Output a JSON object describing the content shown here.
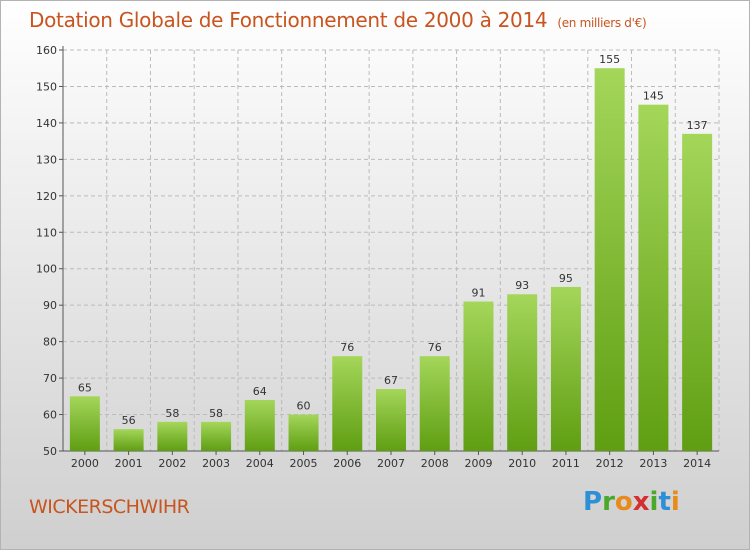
{
  "title": "Dotation Globale de Fonctionnement de 2000 à 2014",
  "subtitle": "(en milliers d'€)",
  "commune": "WICKERSCHWIHR",
  "logo_text": "Proxiti",
  "colors": {
    "bar_top": "#a4d65a",
    "bar_bottom": "#5f9e12",
    "title": "#c8541e",
    "grid": "#bbbbbb"
  },
  "chart_data": {
    "type": "bar",
    "categories": [
      "2000",
      "2001",
      "2002",
      "2003",
      "2004",
      "2005",
      "2006",
      "2007",
      "2008",
      "2009",
      "2010",
      "2011",
      "2012",
      "2013",
      "2014"
    ],
    "values": [
      65,
      56,
      58,
      58,
      64,
      60,
      76,
      67,
      76,
      91,
      93,
      95,
      155,
      145,
      137
    ],
    "title": "Dotation Globale de Fonctionnement de 2000 à 2014",
    "xlabel": "",
    "ylabel": "",
    "ylim": [
      50,
      160
    ],
    "yticks": [
      50,
      60,
      70,
      80,
      90,
      100,
      110,
      120,
      130,
      140,
      150,
      160
    ],
    "grid": true,
    "data_labels": true
  }
}
